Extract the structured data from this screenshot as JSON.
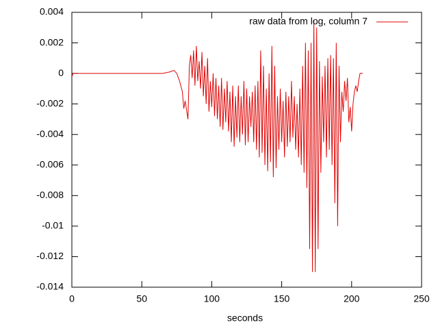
{
  "chart_data": {
    "type": "line",
    "x_label": "seconds",
    "legend": "top right",
    "xlim": [
      0,
      250
    ],
    "xticks": [
      0,
      50,
      100,
      150,
      200,
      250
    ],
    "ylim": [
      -0.014,
      0.004
    ],
    "yticks": [
      0.004,
      0.002,
      0,
      -0.002,
      -0.004,
      -0.006,
      -0.008,
      -0.01,
      -0.012,
      -0.014
    ],
    "series": [
      {
        "name": "raw data from log, column 7",
        "color": "#e00000",
        "x": [
          0,
          1,
          65,
          70,
          73,
          75,
          77,
          79,
          80,
          81,
          82,
          83,
          84,
          85,
          86,
          87,
          88,
          89,
          90,
          91,
          92,
          93,
          94,
          95,
          96,
          97,
          98,
          99,
          100,
          101,
          102,
          103,
          104,
          105,
          106,
          107,
          108,
          109,
          110,
          111,
          112,
          113,
          114,
          115,
          116,
          117,
          118,
          119,
          120,
          121,
          122,
          123,
          124,
          125,
          126,
          127,
          128,
          129,
          130,
          131,
          132,
          133,
          134,
          135,
          136,
          137,
          138,
          139,
          140,
          141,
          142,
          143,
          144,
          145,
          146,
          147,
          148,
          149,
          150,
          151,
          152,
          153,
          154,
          155,
          156,
          157,
          158,
          159,
          160,
          161,
          162,
          163,
          164,
          165,
          166,
          167,
          168,
          169,
          170,
          171,
          172,
          173,
          174,
          175,
          176,
          177,
          178,
          179,
          180,
          181,
          182,
          183,
          184,
          185,
          186,
          187,
          188,
          189,
          190,
          191,
          192,
          193,
          194,
          195,
          196,
          197,
          198,
          199,
          200,
          201,
          202,
          203,
          204,
          205,
          206,
          207,
          208
        ],
        "values": [
          -0.0002,
          0,
          0,
          0.0001,
          0.0002,
          0,
          -0.0005,
          -0.0012,
          -0.0023,
          -0.0018,
          -0.0024,
          -0.003,
          0.0005,
          0.0012,
          -0.0003,
          0.0015,
          -0.0008,
          0.0018,
          -0.0005,
          0.0008,
          -0.001,
          0.0014,
          -0.0015,
          0.0005,
          -0.002,
          0.001,
          -0.0025,
          -0.0005,
          -0.0022,
          0,
          -0.0028,
          -0.0003,
          -0.003,
          -0.0008,
          -0.0035,
          -0.0003,
          -0.0037,
          -0.001,
          -0.0032,
          -0.0005,
          -0.0038,
          -0.0012,
          -0.0045,
          -0.0008,
          -0.0048,
          -0.0015,
          -0.0042,
          -0.0008,
          -0.0045,
          -0.0015,
          -0.004,
          -0.0005,
          -0.0047,
          -0.001,
          -0.0045,
          -0.0015,
          -0.0035,
          -0.0012,
          -0.0045,
          -0.0008,
          -0.005,
          -0.0005,
          -0.0055,
          0.0015,
          -0.0052,
          0.0005,
          -0.006,
          -0.001,
          -0.0064,
          0,
          -0.0058,
          0.0018,
          -0.0068,
          0.0005,
          -0.0062,
          -0.0015,
          -0.005,
          -0.001,
          -0.0045,
          -0.0018,
          -0.0055,
          -0.0012,
          -0.0048,
          -0.0015,
          -0.0045,
          -0.0005,
          -0.0042,
          -0.0015,
          -0.005,
          -0.002,
          -0.0055,
          -0.001,
          -0.006,
          0.0005,
          -0.0065,
          0.002,
          -0.0075,
          0.0015,
          -0.0115,
          0.002,
          -0.013,
          0.0035,
          -0.013,
          0.003,
          -0.0115,
          0.0008,
          -0.0065,
          -0.0002,
          -0.0045,
          0.0005,
          -0.0055,
          0.001,
          -0.005,
          0.0012,
          -0.006,
          0.001,
          -0.0085,
          0.002,
          -0.01,
          0.0005,
          -0.0045,
          -0.0012,
          -0.0025,
          -0.0005,
          -0.0018,
          -0.0003,
          -0.0032,
          -0.0022,
          -0.0038,
          -0.002,
          -0.0012,
          -0.0008,
          -0.0012,
          -0.0005,
          0,
          0,
          0
        ]
      }
    ]
  }
}
